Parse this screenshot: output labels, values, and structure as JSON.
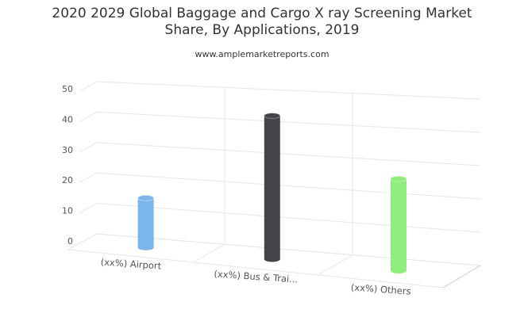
{
  "chart_data": {
    "type": "bar",
    "title": "2020 2029 Global Baggage and Cargo X ray Screening Market Share, By Applications, 2019",
    "subtitle": "www.amplemarketreports.com",
    "categories": [
      "(xx%) Airport",
      "(xx%) Bus & Trai...",
      "(xx%) Others"
    ],
    "values": [
      16,
      45,
      28
    ],
    "colors": [
      "#7cb5ec",
      "#434348",
      "#90ed7d"
    ],
    "ylim": [
      0,
      50
    ],
    "yticks": [
      0,
      10,
      20,
      30,
      40,
      50
    ],
    "grid": true
  }
}
